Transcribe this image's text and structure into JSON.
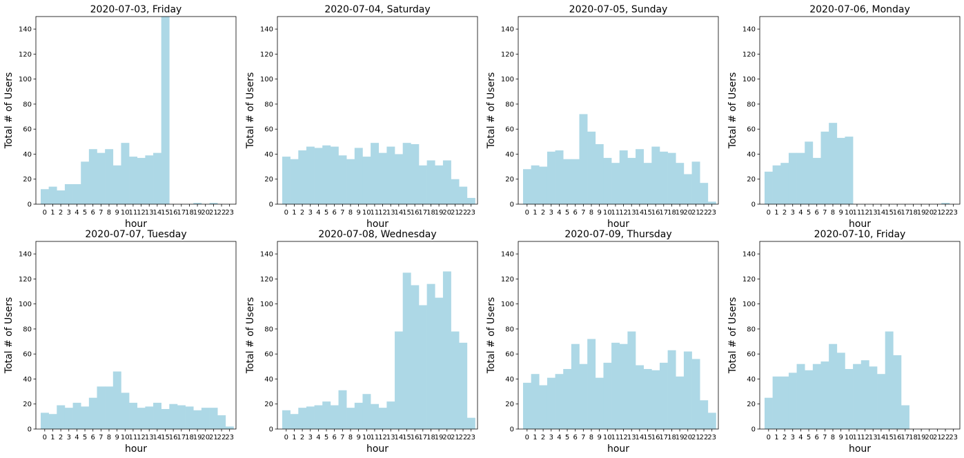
{
  "chart_data": [
    {
      "type": "bar",
      "title": "2020-07-03, Friday",
      "xlabel": "hour",
      "ylabel": "Total # of Users",
      "ylim": [
        0,
        150
      ],
      "yticks": [
        0,
        20,
        40,
        60,
        80,
        100,
        120,
        140
      ],
      "categories": [
        "0",
        "1",
        "2",
        "3",
        "4",
        "5",
        "6",
        "7",
        "8",
        "9",
        "10",
        "11",
        "12",
        "13",
        "14",
        "15",
        "16",
        "17",
        "18",
        "19",
        "20",
        "21",
        "22",
        "23"
      ],
      "values": [
        12,
        14,
        11,
        16,
        16,
        34,
        44,
        41,
        44,
        31,
        49,
        38,
        37,
        39,
        41,
        150,
        0,
        0,
        0,
        1,
        0,
        1,
        0,
        0
      ],
      "color": "#add8e6"
    },
    {
      "type": "bar",
      "title": "2020-07-04, Saturday",
      "xlabel": "hour",
      "ylabel": "Total # of Users",
      "ylim": [
        0,
        150
      ],
      "yticks": [
        0,
        20,
        40,
        60,
        80,
        100,
        120,
        140
      ],
      "categories": [
        "0",
        "1",
        "2",
        "3",
        "4",
        "5",
        "6",
        "7",
        "8",
        "9",
        "10",
        "11",
        "12",
        "13",
        "14",
        "15",
        "16",
        "17",
        "18",
        "19",
        "20",
        "21",
        "22",
        "23"
      ],
      "values": [
        38,
        36,
        43,
        46,
        45,
        47,
        46,
        39,
        36,
        45,
        38,
        49,
        41,
        46,
        40,
        49,
        48,
        31,
        35,
        31,
        35,
        20,
        14,
        5
      ],
      "color": "#add8e6"
    },
    {
      "type": "bar",
      "title": "2020-07-05, Sunday",
      "xlabel": "hour",
      "ylabel": "Total # of Users",
      "ylim": [
        0,
        150
      ],
      "yticks": [
        0,
        20,
        40,
        60,
        80,
        100,
        120,
        140
      ],
      "categories": [
        "0",
        "1",
        "2",
        "3",
        "4",
        "5",
        "6",
        "7",
        "8",
        "9",
        "10",
        "11",
        "12",
        "13",
        "14",
        "15",
        "16",
        "17",
        "18",
        "19",
        "20",
        "21",
        "22",
        "23"
      ],
      "values": [
        28,
        31,
        30,
        42,
        43,
        36,
        36,
        72,
        58,
        48,
        37,
        33,
        43,
        37,
        44,
        33,
        46,
        42,
        41,
        33,
        24,
        34,
        17,
        2
      ],
      "color": "#add8e6"
    },
    {
      "type": "bar",
      "title": "2020-07-06, Monday",
      "xlabel": "hour",
      "ylabel": "Total # of Users",
      "ylim": [
        0,
        150
      ],
      "yticks": [
        0,
        20,
        40,
        60,
        80,
        100,
        120,
        140
      ],
      "categories": [
        "0",
        "1",
        "2",
        "3",
        "4",
        "5",
        "6",
        "7",
        "8",
        "9",
        "10",
        "11",
        "12",
        "13",
        "14",
        "15",
        "16",
        "17",
        "18",
        "19",
        "20",
        "21",
        "22",
        "23"
      ],
      "values": [
        26,
        31,
        33,
        41,
        41,
        50,
        37,
        58,
        65,
        53,
        54,
        0,
        0,
        0,
        0,
        0,
        0,
        0,
        0,
        0,
        0,
        0,
        1,
        0
      ],
      "color": "#add8e6"
    },
    {
      "type": "bar",
      "title": "2020-07-07, Tuesday",
      "xlabel": "hour",
      "ylabel": "Total # of Users",
      "ylim": [
        0,
        150
      ],
      "yticks": [
        0,
        20,
        40,
        60,
        80,
        100,
        120,
        140
      ],
      "categories": [
        "0",
        "1",
        "2",
        "3",
        "4",
        "5",
        "6",
        "7",
        "8",
        "9",
        "10",
        "11",
        "12",
        "13",
        "14",
        "15",
        "16",
        "17",
        "18",
        "19",
        "20",
        "21",
        "22",
        "23"
      ],
      "values": [
        13,
        12,
        19,
        17,
        21,
        18,
        25,
        34,
        34,
        46,
        29,
        21,
        17,
        18,
        21,
        16,
        20,
        19,
        18,
        15,
        17,
        17,
        11,
        2
      ],
      "color": "#add8e6"
    },
    {
      "type": "bar",
      "title": "2020-07-08, Wednesday",
      "xlabel": "hour",
      "ylabel": "Total # of Users",
      "ylim": [
        0,
        150
      ],
      "yticks": [
        0,
        20,
        40,
        60,
        80,
        100,
        120,
        140
      ],
      "categories": [
        "0",
        "1",
        "2",
        "3",
        "4",
        "5",
        "6",
        "7",
        "8",
        "9",
        "10",
        "11",
        "12",
        "13",
        "14",
        "15",
        "16",
        "17",
        "18",
        "19",
        "20",
        "21",
        "22",
        "23"
      ],
      "values": [
        15,
        12,
        17,
        18,
        19,
        22,
        19,
        31,
        17,
        21,
        28,
        20,
        17,
        22,
        78,
        125,
        115,
        99,
        116,
        105,
        126,
        78,
        69,
        9
      ],
      "color": "#add8e6"
    },
    {
      "type": "bar",
      "title": "2020-07-09, Thursday",
      "xlabel": "hour",
      "ylabel": "Total # of Users",
      "ylim": [
        0,
        150
      ],
      "yticks": [
        0,
        20,
        40,
        60,
        80,
        100,
        120,
        140
      ],
      "categories": [
        "0",
        "1",
        "2",
        "3",
        "4",
        "5",
        "6",
        "7",
        "8",
        "9",
        "10",
        "11",
        "12",
        "13",
        "14",
        "15",
        "16",
        "17",
        "18",
        "19",
        "20",
        "21",
        "22",
        "23"
      ],
      "values": [
        37,
        44,
        35,
        41,
        44,
        48,
        68,
        52,
        72,
        41,
        53,
        69,
        68,
        78,
        51,
        48,
        47,
        53,
        63,
        42,
        62,
        56,
        23,
        13
      ],
      "color": "#add8e6"
    },
    {
      "type": "bar",
      "title": "2020-07-10, Friday",
      "xlabel": "hour",
      "ylabel": "Total # of Users",
      "ylim": [
        0,
        150
      ],
      "yticks": [
        0,
        20,
        40,
        60,
        80,
        100,
        120,
        140
      ],
      "categories": [
        "0",
        "1",
        "2",
        "3",
        "4",
        "5",
        "6",
        "7",
        "8",
        "9",
        "10",
        "11",
        "12",
        "13",
        "14",
        "15",
        "16",
        "17",
        "18",
        "19",
        "20",
        "21",
        "22",
        "23"
      ],
      "values": [
        25,
        42,
        42,
        45,
        52,
        47,
        52,
        54,
        68,
        61,
        48,
        52,
        55,
        50,
        44,
        78,
        59,
        19,
        0,
        0,
        0,
        0,
        0,
        0
      ],
      "color": "#add8e6"
    }
  ]
}
